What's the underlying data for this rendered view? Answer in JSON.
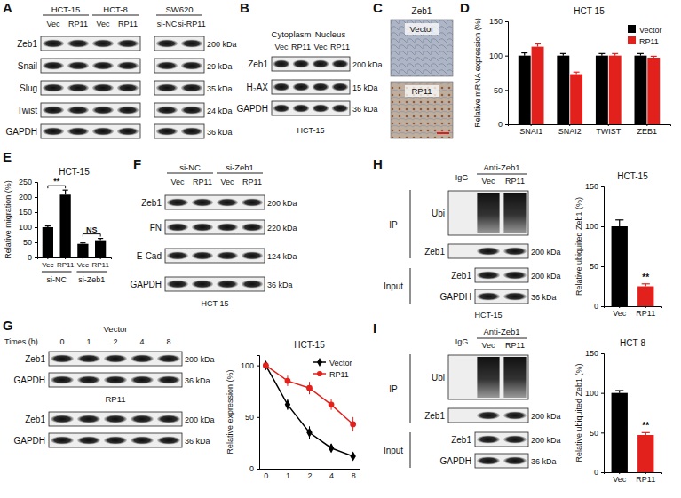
{
  "panels": {
    "A": {
      "letter": "A",
      "groups": [
        {
          "label": "HCT-15",
          "lanes": [
            "Vec",
            "RP11"
          ]
        },
        {
          "label": "HCT-8",
          "lanes": [
            "Vec",
            "RP11"
          ]
        },
        {
          "label": "SW620",
          "lanes": [
            "si-NC",
            "si-RP11"
          ]
        }
      ],
      "rows": [
        {
          "label": "Zeb1",
          "size": "200 kDa"
        },
        {
          "label": "Snail",
          "size": "29 kDa"
        },
        {
          "label": "Slug",
          "size": "35 kDa"
        },
        {
          "label": "Twist",
          "size": "24 kDa"
        },
        {
          "label": "GAPDH",
          "size": "36 kDa"
        }
      ]
    },
    "B": {
      "letter": "B",
      "groups": [
        {
          "label": "Cytoplasm",
          "lanes": [
            "Vec",
            "RP11"
          ]
        },
        {
          "label": "Nucleus",
          "lanes": [
            "Vec",
            "RP11"
          ]
        }
      ],
      "rows": [
        {
          "label": "Zeb1",
          "size": "200 kDa"
        },
        {
          "label": "H₂AX",
          "size": "15 kDa"
        },
        {
          "label": "GAPDH",
          "size": "36 kDa"
        }
      ],
      "caption": "HCT-15"
    },
    "C": {
      "letter": "C",
      "title": "Zeb1",
      "images": [
        "Vector",
        "RP11"
      ]
    },
    "D": {
      "letter": "D"
    },
    "E": {
      "letter": "E"
    },
    "F": {
      "letter": "F",
      "groups": [
        {
          "label": "si-NC",
          "lanes": [
            "Vec",
            "RP11"
          ]
        },
        {
          "label": "si-Zeb1",
          "lanes": [
            "Vec",
            "RP11"
          ]
        }
      ],
      "rows": [
        {
          "label": "Zeb1",
          "size": "200 kDa"
        },
        {
          "label": "FN",
          "size": "220 kDa"
        },
        {
          "label": "E-Cad",
          "size": "124 kDa"
        },
        {
          "label": "GAPDH",
          "size": "36 kDa"
        }
      ],
      "caption": "HCT-15"
    },
    "G": {
      "letter": "G",
      "time_label": "Times (h)",
      "times": [
        "0",
        "1",
        "2",
        "4",
        "8"
      ],
      "blots": [
        {
          "label": "Vector",
          "rows": [
            {
              "label": "Zeb1",
              "size": "200 kDa"
            },
            {
              "label": "GAPDH",
              "size": "36 kDa"
            }
          ]
        },
        {
          "label": "RP11",
          "rows": [
            {
              "label": "Zeb1",
              "size": "200 kDa"
            },
            {
              "label": "GAPDH",
              "size": "36 kDa"
            }
          ]
        }
      ]
    },
    "H": {
      "letter": "H",
      "header": {
        "igg": "IgG",
        "antibody": "Anti-Zeb1",
        "lanes": [
          "Vec",
          "RP11"
        ]
      },
      "sections": [
        {
          "label": "IP",
          "rows": [
            {
              "label": "Ubi"
            },
            {
              "label": "Zeb1",
              "size": "200 kDa"
            }
          ]
        },
        {
          "label": "Input",
          "rows": [
            {
              "label": "Zeb1",
              "size": "200 kDa"
            },
            {
              "label": "GAPDH",
              "size": "36 kDa"
            }
          ]
        }
      ],
      "caption": "HCT-15"
    },
    "I": {
      "letter": "I",
      "header": {
        "igg": "IgG",
        "antibody": "Anti-Zeb1",
        "lanes": [
          "Vec",
          "RP11"
        ]
      },
      "sections": [
        {
          "label": "IP",
          "rows": [
            {
              "label": "Ubi"
            },
            {
              "label": "Zeb1",
              "size": "200 kDa"
            }
          ]
        },
        {
          "label": "Input",
          "rows": [
            {
              "label": "Zeb1",
              "size": "200 kDa"
            },
            {
              "label": "GAPDH",
              "size": "36 kDa"
            }
          ]
        }
      ]
    }
  },
  "chart_data": [
    {
      "type": "bar",
      "title": "HCT-15",
      "y_label": "Relative mRNA expression (%)",
      "categories": [
        "SNAI1",
        "SNAI2",
        "TWIST",
        "ZEB1"
      ],
      "ylim": [
        0,
        150
      ],
      "yticks": [
        0,
        50,
        100,
        150
      ],
      "legend": "top-right",
      "series": [
        {
          "name": "Vector",
          "color": "#000000",
          "values": [
            100,
            100,
            100,
            100
          ],
          "errors": [
            4,
            3,
            3,
            3
          ]
        },
        {
          "name": "RP11",
          "color": "#e3211c",
          "values": [
            113,
            73,
            100,
            97
          ],
          "errors": [
            4,
            3,
            3,
            2
          ]
        }
      ]
    },
    {
      "type": "bar",
      "title": "HCT-15",
      "y_label": "Relative migration (%)",
      "categories": [
        "Vec",
        "RP11",
        "Vec",
        "RP11"
      ],
      "ylim": [
        0,
        250
      ],
      "yticks": [
        0,
        50,
        100,
        150,
        200,
        250
      ],
      "color": "#000000",
      "values": [
        100,
        208,
        45,
        57
      ],
      "errors": [
        4,
        15,
        3,
        6
      ],
      "groups": [
        {
          "label": "si-NC",
          "annotation": "**"
        },
        {
          "label": "si-Zeb1",
          "annotation": "NS"
        }
      ]
    },
    {
      "type": "line",
      "title": "HCT-15",
      "y_label": "Relative expression (%)",
      "categories": [
        "0",
        "1",
        "2",
        "4",
        "8"
      ],
      "ylim": [
        0,
        110
      ],
      "yticks": [
        0,
        50,
        100
      ],
      "legend": "top-right",
      "series": [
        {
          "name": "Vector",
          "color": "#000000",
          "marker": "diamond",
          "values": [
            100,
            62,
            35,
            20,
            12
          ],
          "errors": [
            0,
            5,
            6,
            4,
            3
          ]
        },
        {
          "name": "RP11",
          "color": "#e3211c",
          "marker": "circle",
          "values": [
            100,
            85,
            78,
            62,
            43
          ],
          "errors": [
            0,
            5,
            6,
            5,
            7
          ]
        }
      ]
    },
    {
      "type": "bar",
      "title": "HCT-15",
      "y_label": "Relative ubiquited Zeb1 (%)",
      "categories": [
        "Vec",
        "RP11"
      ],
      "ylim": [
        0,
        150
      ],
      "yticks": [
        0,
        50,
        100,
        150
      ],
      "colors": [
        "#000000",
        "#e3211c"
      ],
      "values": [
        100,
        25
      ],
      "errors": [
        8,
        3
      ],
      "annotations": [
        "**"
      ]
    },
    {
      "type": "bar",
      "title": "HCT-8",
      "y_label": "Relative ubiquited Zeb1 (%)",
      "categories": [
        "Vec",
        "RP11"
      ],
      "ylim": [
        0,
        150
      ],
      "yticks": [
        0,
        50,
        100,
        150
      ],
      "colors": [
        "#000000",
        "#e3211c"
      ],
      "values": [
        100,
        47
      ],
      "errors": [
        3,
        3
      ],
      "annotations": [
        "**"
      ]
    }
  ]
}
